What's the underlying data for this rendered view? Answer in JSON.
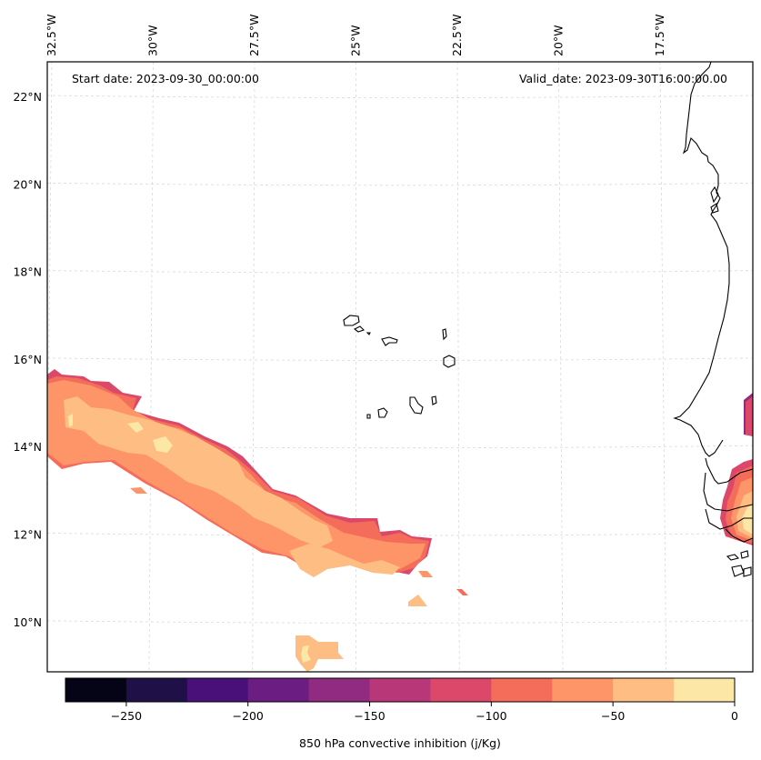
{
  "figure": {
    "start_date_label": "Start date: 2023-09-30_00:00:00",
    "valid_date_label": "Valid_date: 2023-09-30T16:00:00.00"
  },
  "chart_data": {
    "type": "heatmap",
    "subtype": "filled-contour map",
    "title": "",
    "variable": "850 hPa convective inhibition",
    "units": "j/Kg",
    "colorbar": {
      "label": "850 hPa convective inhibition (j/Kg)",
      "orientation": "horizontal",
      "placement": "bottom",
      "levels": [
        -275,
        -250,
        -225,
        -200,
        -175,
        -150,
        -125,
        -100,
        -75,
        -50,
        -25,
        0
      ],
      "tick_values": [
        -250,
        -200,
        -150,
        -100,
        -50,
        0
      ],
      "tick_labels": [
        "−250",
        "−200",
        "−150",
        "−100",
        "−50",
        "0"
      ],
      "colors": [
        "#050416",
        "#1f1147",
        "#4a1079",
        "#6b1d82",
        "#912b81",
        "#b73779",
        "#dc4869",
        "#f46d5b",
        "#fd9568",
        "#fdbd83",
        "#fde7a7"
      ]
    },
    "lon_ticks": {
      "values": [
        -32.5,
        -30,
        -27.5,
        -25,
        -22.5,
        -20,
        -17.5
      ],
      "labels": [
        "32.5°W",
        "30°W",
        "27.5°W",
        "25°W",
        "22.5°W",
        "20°W",
        "17.5°W"
      ],
      "placement": "top"
    },
    "lat_ticks": {
      "values": [
        10,
        12,
        14,
        16,
        18,
        20,
        22
      ],
      "labels": [
        "10°N",
        "12°N",
        "14°N",
        "16°N",
        "18°N",
        "20°N",
        "22°N"
      ],
      "placement": "left"
    },
    "extent": {
      "lon": [
        -32.6,
        -16.4
      ],
      "lat": [
        8.9,
        22.8
      ]
    },
    "grid": true,
    "features": [
      "Cape Verde islands coastline",
      "West African coastline (Mauritania, Senegal, Gambia, Guinea-Bissau)"
    ],
    "regions": [
      {
        "name": "main CIN band",
        "description": "SE-trending band from ~32.5W 15.5N to ~24W 11.5N",
        "value_range": [
          -150,
          0
        ],
        "dominant_bins": [
          "-75 to -50",
          "-50 to -25"
        ],
        "core_max_bin": "-25 to 0"
      },
      {
        "name": "southern patch",
        "location": "~26.5W 9.2N",
        "value_range": [
          -50,
          0
        ]
      },
      {
        "name": "coastal Guinea/Senegal",
        "location": "~16.5W 11-15N",
        "value_range": [
          -175,
          0
        ]
      }
    ]
  }
}
